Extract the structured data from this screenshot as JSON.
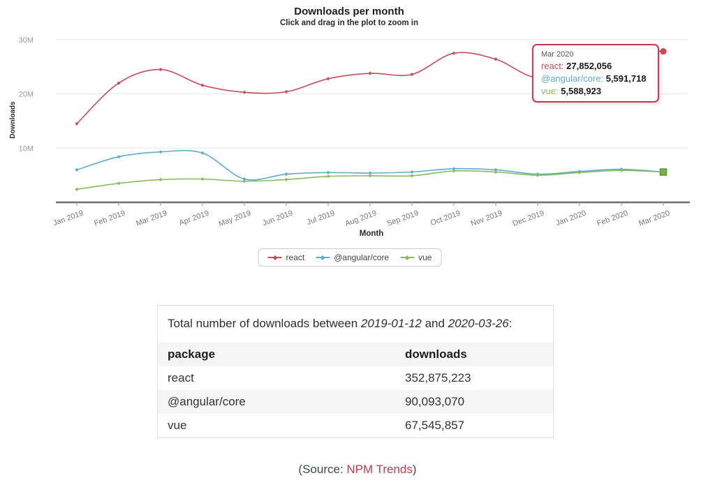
{
  "page": {
    "background": "#ffffff"
  },
  "chart_data": [
    {
      "type": "line",
      "title": "Downloads per month",
      "subtitle": "Click and drag in the plot to zoom in",
      "xlabel": "Month",
      "ylabel": "Downloads",
      "unit": "millions of downloads per month",
      "categories": [
        "Jan 2019",
        "Feb 2019",
        "Mar 2019",
        "Apr 2019",
        "May 2019",
        "Jun 2019",
        "Jul 2019",
        "Aug 2019",
        "Sep 2019",
        "Oct 2019",
        "Nov 2019",
        "Dec 2019",
        "Jan 2020",
        "Feb 2020",
        "Mar 2020"
      ],
      "y_ticks": [
        {
          "label": "10M",
          "value": 10
        },
        {
          "label": "20M",
          "value": 20
        },
        {
          "label": "30M",
          "value": 30
        }
      ],
      "ylim": [
        0,
        31.5
      ],
      "grid": true,
      "legend_position": "bottom",
      "series": [
        {
          "name": "react",
          "color": "#c84b5b",
          "values": [
            14.5,
            22.0,
            24.5,
            21.6,
            20.3,
            20.4,
            22.8,
            23.8,
            23.6,
            27.5,
            26.4,
            23.0,
            25.8,
            27.9,
            27.85
          ],
          "end_marker": "circle"
        },
        {
          "name": "@angular/core",
          "color": "#5badcd",
          "values": [
            6.0,
            8.4,
            9.3,
            9.1,
            4.3,
            5.2,
            5.5,
            5.4,
            5.6,
            6.2,
            6.0,
            5.2,
            5.7,
            6.1,
            5.59
          ],
          "end_marker": "none"
        },
        {
          "name": "vue",
          "color": "#8aba5c",
          "values": [
            2.4,
            3.5,
            4.2,
            4.3,
            3.9,
            4.2,
            4.8,
            4.9,
            4.9,
            5.8,
            5.6,
            5.0,
            5.5,
            5.9,
            5.59
          ],
          "end_marker": "square",
          "end_marker_fill": "#76b143",
          "end_marker_stroke": "#5c9637"
        }
      ],
      "tooltip": {
        "date": "Mar 2020",
        "border_color": "#c03b52",
        "rows": [
          {
            "label": "react",
            "value": "27,852,056"
          },
          {
            "label": "@angular/core",
            "value": "5,591,718"
          },
          {
            "label": "vue",
            "value": "5,588,923"
          }
        ]
      }
    },
    {
      "type": "table",
      "caption_prefix": "Total number of downloads between ",
      "caption_date_start": "2019-01-12",
      "caption_and": " and ",
      "caption_date_end": "2020-03-26",
      "caption_suffix": ":",
      "columns": [
        "package",
        "downloads"
      ],
      "rows": [
        [
          "react",
          "352,875,223"
        ],
        [
          "@angular/core",
          "90,093,070"
        ],
        [
          "vue",
          "67,545,857"
        ]
      ]
    }
  ],
  "source": {
    "prefix": "(Source: ",
    "link": "NPM Trends",
    "suffix": ")",
    "link_color": "#c43a4b"
  }
}
